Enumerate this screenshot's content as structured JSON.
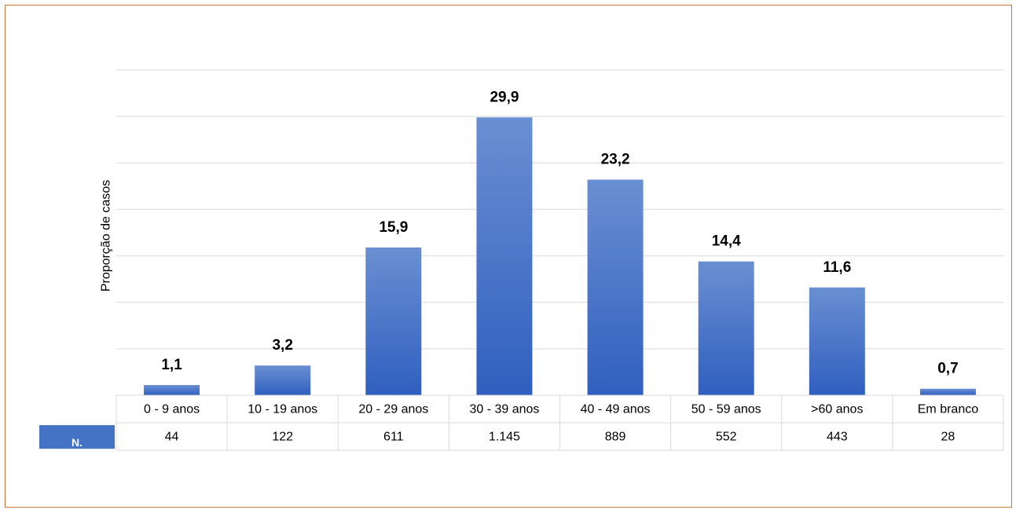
{
  "chart_data": {
    "type": "bar",
    "ylabel": "Proporção de casos",
    "categories": [
      "0 - 9 anos",
      "10 - 19 anos",
      "20 - 29 anos",
      "30 - 39 anos",
      "40 - 49 anos",
      "50 - 59 anos",
      ">60 anos",
      "Em branco"
    ],
    "values": [
      1.1,
      3.2,
      15.9,
      29.9,
      23.2,
      14.4,
      11.6,
      0.7
    ],
    "value_labels": [
      "1,1",
      "3,2",
      "15,9",
      "29,9",
      "23,2",
      "14,4",
      "11,6",
      "0,7"
    ],
    "ylim": [
      0,
      35
    ],
    "grid": true,
    "bar_color": "#4472c4",
    "table": {
      "row_label": "N.",
      "row_label_color": "#4472c4",
      "values": [
        "44",
        "122",
        "611",
        "1.145",
        "889",
        "552",
        "443",
        "28"
      ]
    }
  },
  "colors": {
    "border": "#c8773a",
    "grid": "#d9d9d9"
  }
}
